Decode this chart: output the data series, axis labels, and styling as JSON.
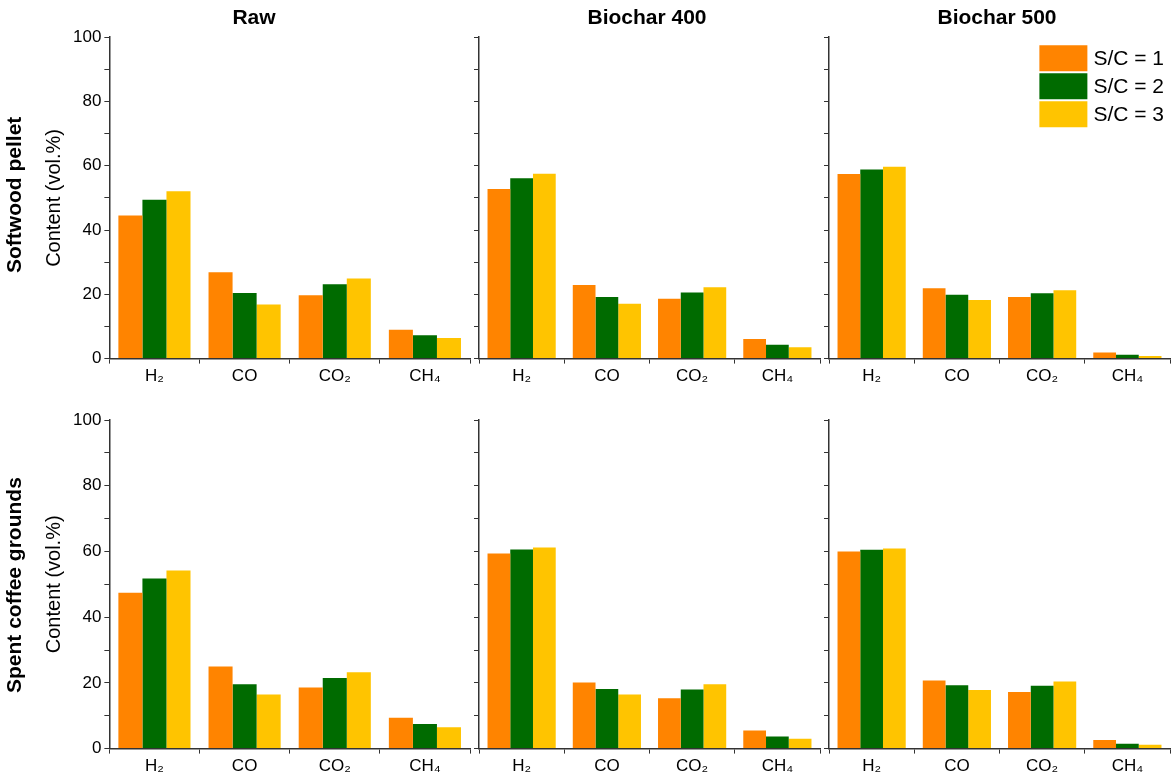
{
  "chart_data": [
    {
      "type": "bar",
      "title": "Raw",
      "ylabel": "Content (vol.%)",
      "annotations": [
        "Softwood pellet"
      ],
      "categories": [
        "H₂",
        "CO",
        "CO₂",
        "CH₄"
      ],
      "series": [
        {
          "color": "#ff8400",
          "values": [
            44.5,
            26.9,
            19.7,
            9.0
          ]
        },
        {
          "color": "#006b00",
          "values": [
            49.4,
            20.4,
            23.1,
            7.3
          ]
        },
        {
          "color": "#ffc400",
          "values": [
            52.1,
            16.8,
            24.9,
            6.4
          ]
        }
      ],
      "ylim": [
        0,
        100
      ],
      "yticks": [
        0,
        {
          "value": 10,
          "label": null
        },
        20,
        {
          "value": 30,
          "label": null
        },
        40,
        {
          "value": 50,
          "label": null
        },
        60,
        {
          "value": 70,
          "label": null
        },
        80,
        {
          "value": 90,
          "label": null
        },
        100
      ]
    },
    {
      "type": "bar",
      "title": "Biochar 400",
      "categories": [
        "H₂",
        "CO",
        "CO₂",
        "CH₄"
      ],
      "series": [
        {
          "color": "#ff8400",
          "values": [
            52.8,
            22.9,
            18.6,
            6.1
          ]
        },
        {
          "color": "#006b00",
          "values": [
            56.1,
            19.2,
            20.6,
            4.3
          ]
        },
        {
          "color": "#ffc400",
          "values": [
            57.5,
            17.1,
            22.2,
            3.5
          ]
        }
      ],
      "ylim": [
        0,
        100
      ],
      "yticks": [
        0,
        {
          "value": 10,
          "label": null
        },
        20,
        {
          "value": 30,
          "label": null
        },
        40,
        {
          "value": 50,
          "label": null
        },
        60,
        {
          "value": 70,
          "label": null
        },
        80,
        {
          "value": 90,
          "label": null
        },
        100
      ],
      "tick_labels": "x"
    },
    {
      "type": "bar",
      "title": "Biochar 500",
      "categories": [
        "H₂",
        "CO",
        "CO₂",
        "CH₄"
      ],
      "legend": "top right",
      "series": [
        {
          "name": "S/C = 1",
          "color": "#ff8400",
          "values": [
            57.4,
            21.9,
            19.2,
            1.9
          ]
        },
        {
          "name": "S/C = 2",
          "color": "#006b00",
          "values": [
            58.8,
            19.9,
            20.3,
            1.2
          ]
        },
        {
          "name": "S/C = 3",
          "color": "#ffc400",
          "values": [
            59.7,
            18.2,
            21.3,
            0.8
          ]
        }
      ],
      "ylim": [
        0,
        100
      ],
      "yticks": [
        0,
        {
          "value": 10,
          "label": null
        },
        20,
        {
          "value": 30,
          "label": null
        },
        40,
        {
          "value": 50,
          "label": null
        },
        60,
        {
          "value": 70,
          "label": null
        },
        80,
        {
          "value": 90,
          "label": null
        },
        100
      ],
      "tick_labels": "x"
    },
    {
      "type": "bar",
      "ylabel": "Content (vol.%)",
      "annotations": [
        "Spent coffee grounds"
      ],
      "categories": [
        "H₂",
        "CO",
        "CO₂",
        "CH₄"
      ],
      "series": [
        {
          "color": "#ff8400",
          "values": [
            47.4,
            25.0,
            18.6,
            9.4
          ]
        },
        {
          "color": "#006b00",
          "values": [
            51.8,
            19.6,
            21.5,
            7.5
          ]
        },
        {
          "color": "#ffc400",
          "values": [
            54.2,
            16.5,
            23.2,
            6.5
          ]
        }
      ],
      "ylim": [
        0,
        100
      ],
      "yticks": [
        0,
        {
          "value": 10,
          "label": null
        },
        20,
        {
          "value": 30,
          "label": null
        },
        40,
        {
          "value": 50,
          "label": null
        },
        60,
        {
          "value": 70,
          "label": null
        },
        80,
        {
          "value": 90,
          "label": null
        },
        100
      ]
    },
    {
      "type": "bar",
      "categories": [
        "H₂",
        "CO",
        "CO₂",
        "CH₄"
      ],
      "series": [
        {
          "color": "#ff8400",
          "values": [
            59.4,
            20.1,
            15.3,
            5.5
          ]
        },
        {
          "color": "#006b00",
          "values": [
            60.6,
            18.1,
            18.0,
            3.7
          ]
        },
        {
          "color": "#ffc400",
          "values": [
            61.2,
            16.5,
            19.6,
            3.0
          ]
        }
      ],
      "ylim": [
        0,
        100
      ],
      "yticks": [
        0,
        {
          "value": 10,
          "label": null
        },
        20,
        {
          "value": 30,
          "label": null
        },
        40,
        {
          "value": 50,
          "label": null
        },
        60,
        {
          "value": 70,
          "label": null
        },
        80,
        {
          "value": 90,
          "label": null
        },
        100
      ],
      "tick_labels": "x"
    },
    {
      "type": "bar",
      "categories": [
        "H₂",
        "CO",
        "CO₂",
        "CH₄"
      ],
      "series": [
        {
          "color": "#ff8400",
          "values": [
            60.0,
            20.7,
            17.2,
            2.6
          ]
        },
        {
          "color": "#006b00",
          "values": [
            60.5,
            19.3,
            19.1,
            1.5
          ]
        },
        {
          "color": "#ffc400",
          "values": [
            60.9,
            17.8,
            20.4,
            1.2
          ]
        }
      ],
      "ylim": [
        0,
        100
      ],
      "yticks": [
        0,
        {
          "value": 10,
          "label": null
        },
        20,
        {
          "value": 30,
          "label": null
        },
        40,
        {
          "value": 50,
          "label": null
        },
        60,
        {
          "value": 70,
          "label": null
        },
        80,
        {
          "value": 90,
          "label": null
        },
        100
      ],
      "tick_labels": "x"
    }
  ]
}
